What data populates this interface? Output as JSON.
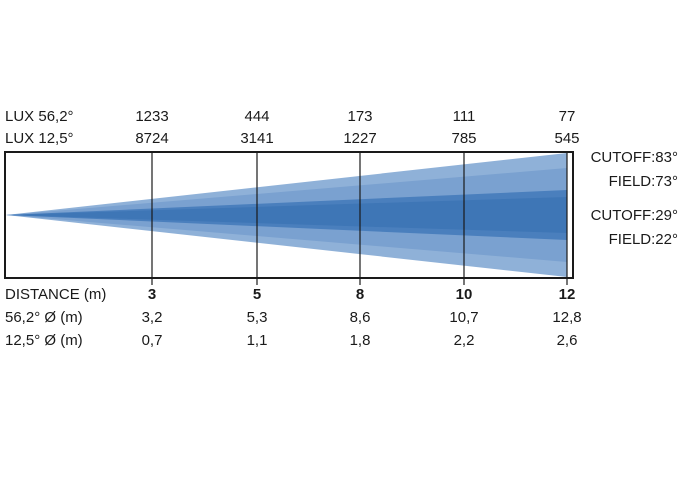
{
  "header_rows": [
    {
      "label": "LUX 56,2°",
      "values": [
        "1233",
        "444",
        "173",
        "111",
        "77"
      ]
    },
    {
      "label": "LUX 12,5°",
      "values": [
        "8724",
        "3141",
        "1227",
        "785",
        "545"
      ]
    }
  ],
  "beam_labels": [
    "CUTOFF:83°",
    "FIELD:73°",
    "CUTOFF:29°",
    "FIELD:22°"
  ],
  "footer_rows": [
    {
      "label": "DISTANCE (m)",
      "values": [
        "3",
        "5",
        "8",
        "10",
        "12"
      ]
    },
    {
      "label": "56,2° Ø (m)",
      "values": [
        "3,2",
        "5,3",
        "8,6",
        "10,7",
        "12,8"
      ]
    },
    {
      "label": "12,5° Ø (m)",
      "values": [
        "0,7",
        "1,1",
        "1,8",
        "2,2",
        "2,6"
      ]
    }
  ]
}
